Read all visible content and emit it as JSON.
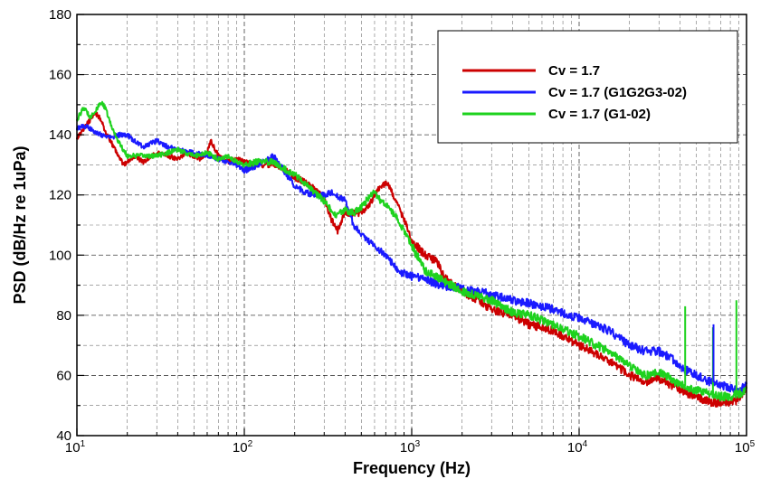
{
  "chart_data": {
    "type": "line",
    "title": "",
    "xlabel": "Frequency (Hz)",
    "ylabel": "PSD (dB/Hz re 1uPa)",
    "xscale": "log",
    "xlim": [
      10,
      100000
    ],
    "ylim": [
      40,
      180
    ],
    "yticks": [
      40,
      60,
      80,
      100,
      120,
      140,
      160,
      180
    ],
    "xticks": [
      {
        "base": "10",
        "exp": "1"
      },
      {
        "base": "10",
        "exp": "2"
      },
      {
        "base": "10",
        "exp": "3"
      },
      {
        "base": "10",
        "exp": "4"
      },
      {
        "base": "10",
        "exp": "5"
      }
    ],
    "grid": true,
    "legend_position": "top-right",
    "series": [
      {
        "name": "Cv = 1.7",
        "color": "#cc0000",
        "x": [
          10,
          11,
          12,
          13,
          14,
          15,
          17,
          19,
          22,
          25,
          30,
          35,
          40,
          45,
          50,
          55,
          60,
          63,
          70,
          80,
          90,
          100,
          120,
          150,
          180,
          200,
          250,
          300,
          330,
          360,
          400,
          450,
          500,
          550,
          600,
          650,
          700,
          750,
          800,
          900,
          1000,
          1200,
          1400,
          1600,
          2000,
          2500,
          3000,
          4000,
          5000,
          7000,
          10000,
          15000,
          20000,
          25000,
          30000,
          35000,
          40000,
          50000,
          60000,
          70000,
          80000,
          90000,
          100000
        ],
        "y": [
          139,
          142,
          145,
          147,
          145,
          140,
          135,
          130,
          133,
          131,
          134,
          133,
          132,
          134,
          133,
          132,
          134,
          138,
          133,
          131,
          132,
          131,
          130,
          130,
          128,
          126,
          123,
          119,
          112,
          108,
          114,
          114,
          114,
          116,
          120,
          123,
          124,
          122,
          118,
          112,
          105,
          100,
          98,
          92,
          88,
          85,
          82,
          80,
          77,
          75,
          70,
          65,
          60,
          58,
          59,
          57,
          55,
          53,
          51,
          51,
          51,
          52,
          56
        ]
      },
      {
        "name": "Cv = 1.7 (G1G2G3-02)",
        "color": "#1a1aff",
        "x": [
          10,
          11,
          12,
          14,
          16,
          18,
          20,
          22,
          25,
          30,
          35,
          40,
          50,
          60,
          70,
          80,
          90,
          100,
          120,
          150,
          200,
          250,
          300,
          330,
          400,
          450,
          500,
          600,
          700,
          800,
          850,
          900,
          1000,
          1200,
          1500,
          2000,
          3000,
          4000,
          5000,
          7000,
          10000,
          15000,
          20000,
          25000,
          30000,
          35000,
          40000,
          50000,
          60000,
          70000,
          80000,
          90000,
          100000
        ],
        "y": [
          142,
          143,
          142,
          140,
          139,
          140,
          140,
          138,
          136,
          138,
          136,
          135,
          134,
          133,
          132,
          131,
          130,
          128,
          130,
          133,
          123,
          120,
          120,
          121,
          118,
          110,
          107,
          103,
          100,
          96,
          94,
          94,
          93,
          92,
          90,
          89,
          87,
          85,
          84,
          82,
          79,
          75,
          70,
          68,
          68,
          66,
          63,
          60,
          58,
          57,
          56,
          55,
          57
        ]
      },
      {
        "name": "Cv = 1.7 (G1-02)",
        "color": "#1ed21e",
        "x": [
          10,
          11,
          12,
          13,
          14,
          15,
          16,
          18,
          20,
          25,
          30,
          40,
          50,
          60,
          70,
          80,
          90,
          100,
          120,
          150,
          180,
          200,
          250,
          300,
          350,
          400,
          450,
          500,
          550,
          600,
          650,
          700,
          800,
          900,
          1000,
          1200,
          1500,
          2000,
          3000,
          4000,
          5000,
          7000,
          10000,
          15000,
          20000,
          25000,
          30000,
          35000,
          40000,
          50000,
          60000,
          70000,
          80000,
          90000,
          100000
        ],
        "y": [
          145,
          149,
          146,
          148,
          151,
          148,
          143,
          137,
          133,
          133,
          133,
          135,
          133,
          134,
          132,
          133,
          131,
          130,
          131,
          131,
          128,
          127,
          122,
          118,
          113,
          115,
          114,
          116,
          119,
          121,
          118,
          117,
          113,
          108,
          103,
          95,
          92,
          88,
          85,
          81,
          80,
          77,
          73,
          68,
          63,
          60,
          61,
          59,
          57,
          55,
          54,
          53,
          53,
          54,
          55
        ]
      }
    ],
    "spikes": [
      {
        "series": 2,
        "x": 43000,
        "y": 83
      },
      {
        "series": 2,
        "x": 63000,
        "y": 76
      },
      {
        "series": 1,
        "x": 63500,
        "y": 77
      },
      {
        "series": 2,
        "x": 87000,
        "y": 85
      }
    ]
  }
}
